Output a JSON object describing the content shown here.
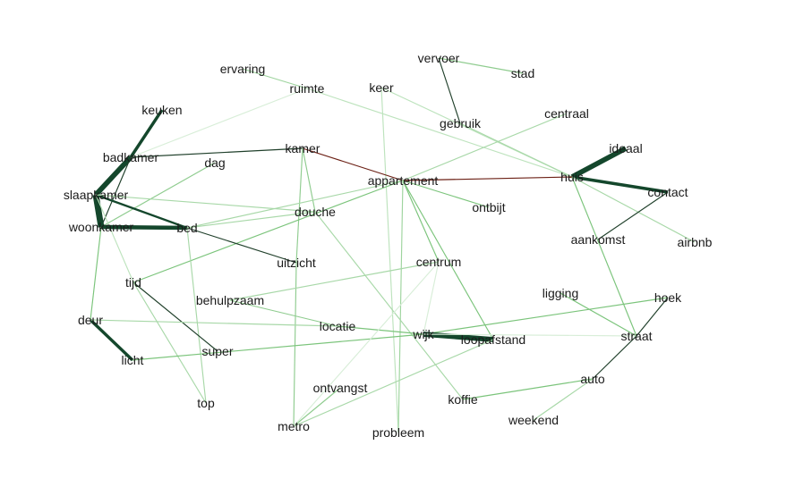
{
  "graph": {
    "nodes": [
      {
        "id": "vervoer",
        "label": "vervoer"
      },
      {
        "id": "stad",
        "label": "stad"
      },
      {
        "id": "ervaring",
        "label": "ervaring"
      },
      {
        "id": "ruimte",
        "label": "ruimte"
      },
      {
        "id": "keer",
        "label": "keer"
      },
      {
        "id": "gebruik",
        "label": "gebruik"
      },
      {
        "id": "centraal",
        "label": "centraal"
      },
      {
        "id": "keuken",
        "label": "keuken"
      },
      {
        "id": "ideaal",
        "label": "ideaal"
      },
      {
        "id": "badkamer",
        "label": "badkamer"
      },
      {
        "id": "kamer",
        "label": "kamer"
      },
      {
        "id": "dag",
        "label": "dag"
      },
      {
        "id": "appartement",
        "label": "appartement"
      },
      {
        "id": "huis",
        "label": "huis"
      },
      {
        "id": "contact",
        "label": "contact"
      },
      {
        "id": "slaapkamer",
        "label": "slaapkamer"
      },
      {
        "id": "ontbijt",
        "label": "ontbijt"
      },
      {
        "id": "douche",
        "label": "douche"
      },
      {
        "id": "woonkamer",
        "label": "woonkamer"
      },
      {
        "id": "bed",
        "label": "bed"
      },
      {
        "id": "aankomst",
        "label": "aankomst"
      },
      {
        "id": "airbnb",
        "label": "airbnb"
      },
      {
        "id": "uitzicht",
        "label": "uitzicht"
      },
      {
        "id": "centrum",
        "label": "centrum"
      },
      {
        "id": "tijd",
        "label": "tijd"
      },
      {
        "id": "ligging",
        "label": "ligging"
      },
      {
        "id": "hoek",
        "label": "hoek"
      },
      {
        "id": "behulpzaam",
        "label": "behulpzaam"
      },
      {
        "id": "deur",
        "label": "deur"
      },
      {
        "id": "locatie",
        "label": "locatie"
      },
      {
        "id": "wijk",
        "label": "wijk"
      },
      {
        "id": "loopafstand",
        "label": "loopafstand"
      },
      {
        "id": "straat",
        "label": "straat"
      },
      {
        "id": "super",
        "label": "super"
      },
      {
        "id": "licht",
        "label": "licht"
      },
      {
        "id": "auto",
        "label": "auto"
      },
      {
        "id": "ontvangst",
        "label": "ontvangst"
      },
      {
        "id": "koffie",
        "label": "koffie"
      },
      {
        "id": "top",
        "label": "top"
      },
      {
        "id": "weekend",
        "label": "weekend"
      },
      {
        "id": "metro",
        "label": "metro"
      },
      {
        "id": "probleem",
        "label": "probleem"
      }
    ],
    "edges": [
      {
        "source": "vervoer",
        "target": "stad",
        "weight": 1,
        "color": "#8fcc8f"
      },
      {
        "source": "vervoer",
        "target": "gebruik",
        "weight": 1,
        "color": "#1f3f2a"
      },
      {
        "source": "ervaring",
        "target": "ruimte",
        "weight": 1,
        "color": "#9ed49e"
      },
      {
        "source": "ruimte",
        "target": "huis",
        "weight": 1,
        "color": "#bde3bd"
      },
      {
        "source": "ruimte",
        "target": "badkamer",
        "weight": 1,
        "color": "#d8eed8"
      },
      {
        "source": "keer",
        "target": "probleem",
        "weight": 1,
        "color": "#bde3bd"
      },
      {
        "source": "keer",
        "target": "huis",
        "weight": 1,
        "color": "#bde3bd"
      },
      {
        "source": "gebruik",
        "target": "huis",
        "weight": 1,
        "color": "#a8d8a8"
      },
      {
        "source": "centraal",
        "target": "appartement",
        "weight": 1,
        "color": "#a8d8a8"
      },
      {
        "source": "keuken",
        "target": "badkamer",
        "weight": 3,
        "color": "#14472c"
      },
      {
        "source": "ideaal",
        "target": "huis",
        "weight": 5,
        "color": "#14472c"
      },
      {
        "source": "badkamer",
        "target": "slaapkamer",
        "weight": 5,
        "color": "#14472c"
      },
      {
        "source": "badkamer",
        "target": "kamer",
        "weight": 1,
        "color": "#1f3f2a"
      },
      {
        "source": "badkamer",
        "target": "woonkamer",
        "weight": 1,
        "color": "#1f3f2a"
      },
      {
        "source": "kamer",
        "target": "appartement",
        "weight": 1,
        "color": "#6b1f14"
      },
      {
        "source": "kamer",
        "target": "douche",
        "weight": 1,
        "color": "#8fcc8f"
      },
      {
        "source": "kamer",
        "target": "uitzicht",
        "weight": 1,
        "color": "#8fcc8f"
      },
      {
        "source": "dag",
        "target": "woonkamer",
        "weight": 1,
        "color": "#8fcc8f"
      },
      {
        "source": "appartement",
        "target": "huis",
        "weight": 1,
        "color": "#6b1f14"
      },
      {
        "source": "appartement",
        "target": "ontbijt",
        "weight": 1,
        "color": "#7bc47b"
      },
      {
        "source": "appartement",
        "target": "tijd",
        "weight": 1,
        "color": "#7bc47b"
      },
      {
        "source": "appartement",
        "target": "loopafstand",
        "weight": 1,
        "color": "#7bc47b"
      },
      {
        "source": "appartement",
        "target": "centrum",
        "weight": 1,
        "color": "#7bc47b"
      },
      {
        "source": "appartement",
        "target": "probleem",
        "weight": 1,
        "color": "#9ed49e"
      },
      {
        "source": "appartement",
        "target": "bed",
        "weight": 1,
        "color": "#a8d8a8"
      },
      {
        "source": "huis",
        "target": "contact",
        "weight": 3,
        "color": "#14472c"
      },
      {
        "source": "huis",
        "target": "airbnb",
        "weight": 1,
        "color": "#a8d8a8"
      },
      {
        "source": "huis",
        "target": "straat",
        "weight": 1,
        "color": "#7bc47b"
      },
      {
        "source": "contact",
        "target": "aankomst",
        "weight": 1,
        "color": "#1f3f2a"
      },
      {
        "source": "slaapkamer",
        "target": "woonkamer",
        "weight": 6,
        "color": "#14472c"
      },
      {
        "source": "slaapkamer",
        "target": "bed",
        "weight": 2,
        "color": "#14472c"
      },
      {
        "source": "slaapkamer",
        "target": "douche",
        "weight": 1,
        "color": "#a8d8a8"
      },
      {
        "source": "slaapkamer",
        "target": "tijd",
        "weight": 1,
        "color": "#bde3bd"
      },
      {
        "source": "woonkamer",
        "target": "bed",
        "weight": 4,
        "color": "#14472c"
      },
      {
        "source": "woonkamer",
        "target": "deur",
        "weight": 1,
        "color": "#7bc47b"
      },
      {
        "source": "bed",
        "target": "uitzicht",
        "weight": 1,
        "color": "#1f3f2a"
      },
      {
        "source": "bed",
        "target": "douche",
        "weight": 1,
        "color": "#a8d8a8"
      },
      {
        "source": "bed",
        "target": "top",
        "weight": 1,
        "color": "#a8d8a8"
      },
      {
        "source": "douche",
        "target": "koffie",
        "weight": 1,
        "color": "#a8d8a8"
      },
      {
        "source": "uitzicht",
        "target": "metro",
        "weight": 1,
        "color": "#8fcc8f"
      },
      {
        "source": "centrum",
        "target": "behulpzaam",
        "weight": 1,
        "color": "#a8d8a8"
      },
      {
        "source": "centrum",
        "target": "wijk",
        "weight": 1,
        "color": "#d8eed8"
      },
      {
        "source": "tijd",
        "target": "super",
        "weight": 1,
        "color": "#1f3f2a"
      },
      {
        "source": "tijd",
        "target": "top",
        "weight": 1,
        "color": "#a8d8a8"
      },
      {
        "source": "ligging",
        "target": "straat",
        "weight": 1,
        "color": "#7bc47b"
      },
      {
        "source": "hoek",
        "target": "straat",
        "weight": 1,
        "color": "#1f3f2a"
      },
      {
        "source": "hoek",
        "target": "wijk",
        "weight": 1,
        "color": "#7bc47b"
      },
      {
        "source": "behulpzaam",
        "target": "locatie",
        "weight": 1,
        "color": "#8fcc8f"
      },
      {
        "source": "deur",
        "target": "licht",
        "weight": 3,
        "color": "#14472c"
      },
      {
        "source": "deur",
        "target": "locatie",
        "weight": 1,
        "color": "#a8d8a8"
      },
      {
        "source": "locatie",
        "target": "wijk",
        "weight": 1,
        "color": "#7bc47b"
      },
      {
        "source": "wijk",
        "target": "loopafstand",
        "weight": 5,
        "color": "#14472c"
      },
      {
        "source": "wijk",
        "target": "straat",
        "weight": 1,
        "color": "#d8eed8"
      },
      {
        "source": "licht",
        "target": "wijk",
        "weight": 1,
        "color": "#7bc47b"
      },
      {
        "source": "loopafstand",
        "target": "metro",
        "weight": 1,
        "color": "#a8d8a8"
      },
      {
        "source": "straat",
        "target": "auto",
        "weight": 1,
        "color": "#1f3f2a"
      },
      {
        "source": "auto",
        "target": "koffie",
        "weight": 1,
        "color": "#7bc47b"
      },
      {
        "source": "auto",
        "target": "weekend",
        "weight": 1,
        "color": "#a8d8a8"
      },
      {
        "source": "ontvangst",
        "target": "metro",
        "weight": 1,
        "color": "#8fcc8f"
      },
      {
        "source": "centrum",
        "target": "metro",
        "weight": 1,
        "color": "#d8eed8"
      }
    ]
  }
}
